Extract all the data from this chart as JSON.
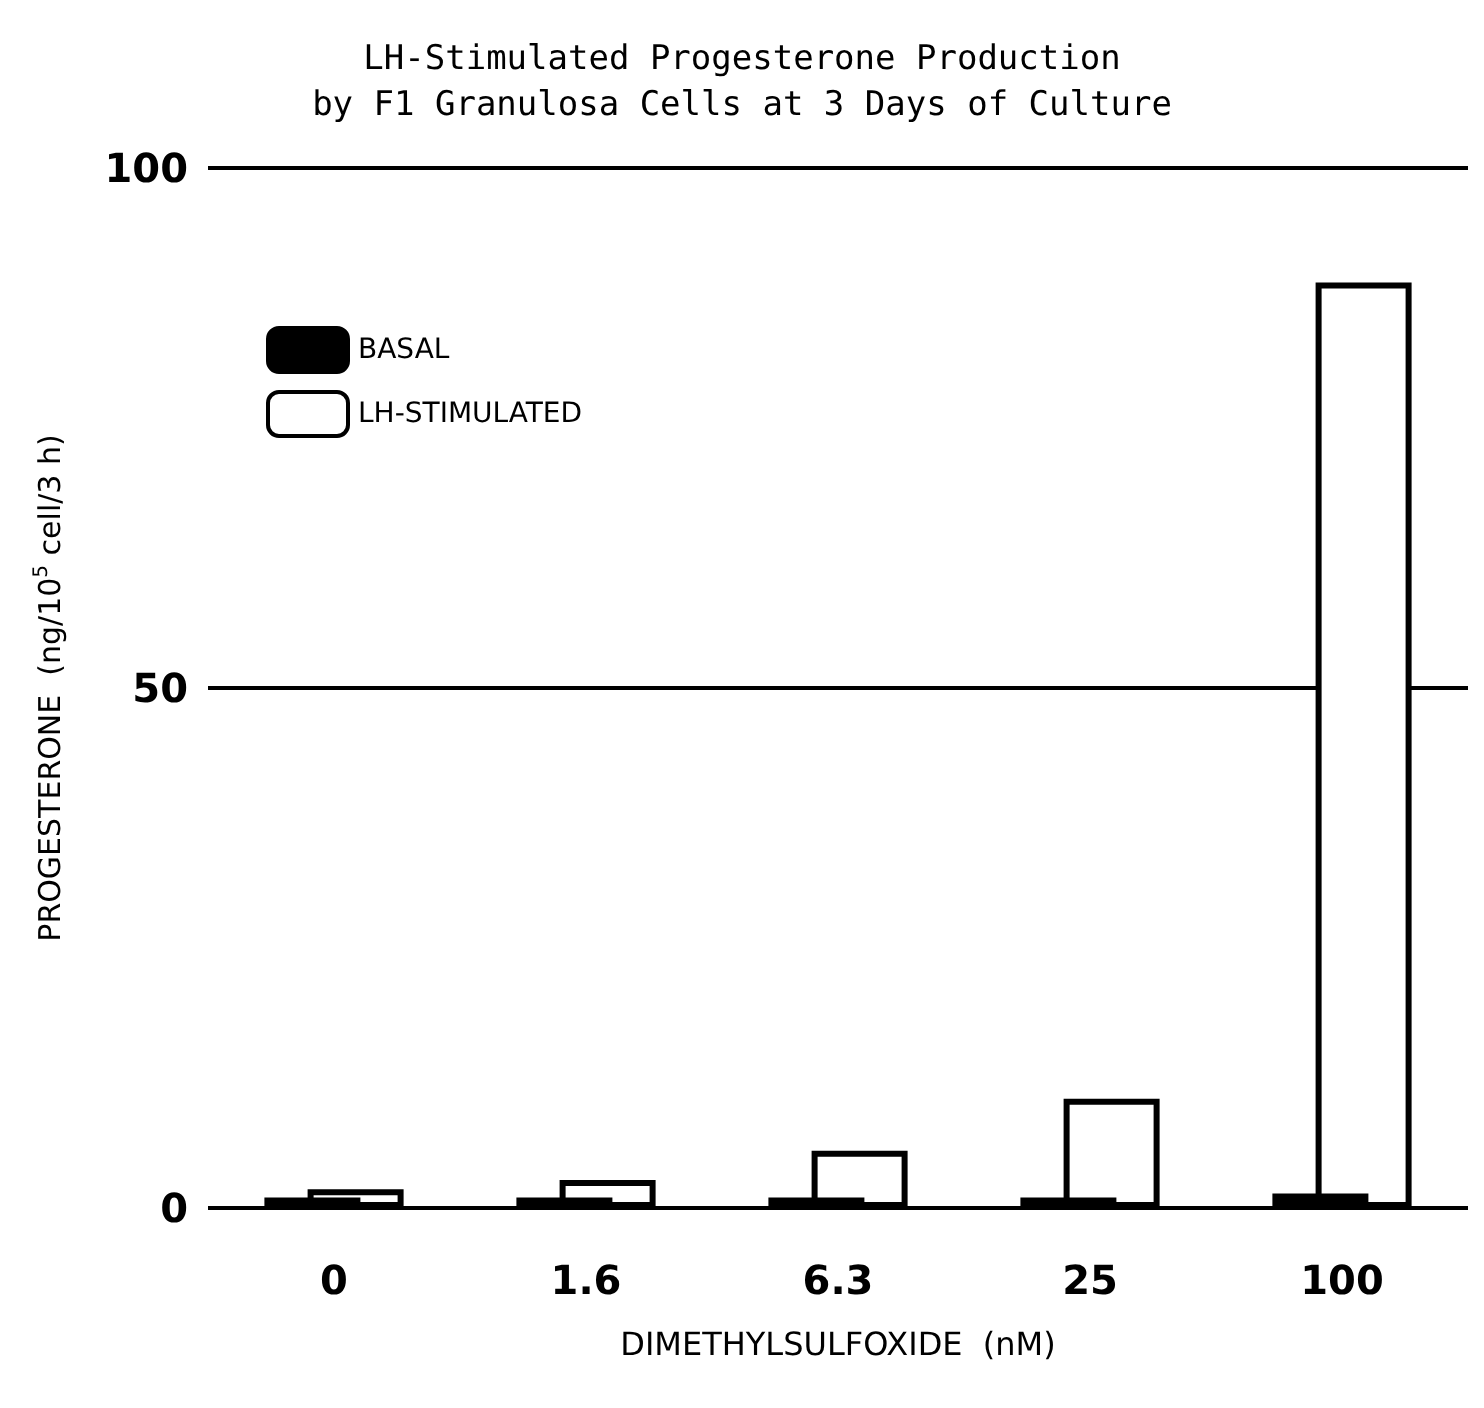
{
  "chart_data": {
    "type": "bar",
    "title": "LH-Stimulated Progesterone Production",
    "subtitle": "by F1 Granulosa Cells at 3 Days of Culture",
    "xlabel": "DIMETHYLSULFOXIDE  (nM)",
    "ylabel": "PROGESTERONE  (ng/10$^{5}$ cell/3 h)",
    "categories": [
      "0",
      "1.6",
      "6.3",
      "25",
      "100"
    ],
    "series": [
      {
        "name": "BASAL",
        "color": "#000000",
        "values": [
          1.0,
          1.0,
          1.0,
          1.0,
          1.4
        ]
      },
      {
        "name": "LH-STIMULATED",
        "color": "#ffffff",
        "values": [
          1.8,
          2.7,
          5.5,
          10.5,
          89
        ]
      }
    ],
    "ylim": [
      0,
      100
    ],
    "yticks": [
      0,
      50,
      100
    ],
    "grid": "y",
    "legend": "top left"
  }
}
